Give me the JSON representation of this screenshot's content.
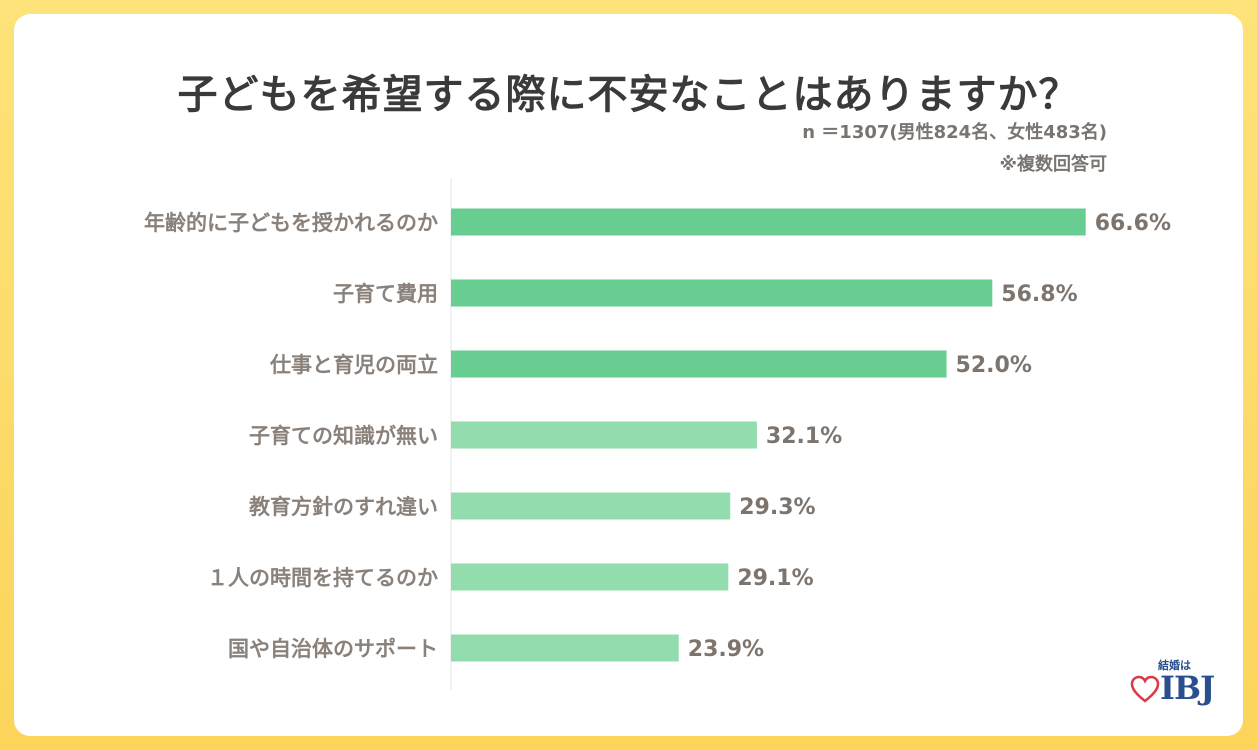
{
  "title": "子どもを希望する際に不安なことはありますか？",
  "notes": {
    "sample": "n ＝1307(男性824名、女性483名)",
    "multi": "※複数回答可"
  },
  "logo": {
    "small": "結婚は",
    "main": "IBJ",
    "icon": "heart-outline-icon"
  },
  "colors": {
    "bar_dark": "#67cd90",
    "bar_light": "#92dcae",
    "background": "#fcd45a"
  },
  "chart_data": {
    "type": "bar",
    "orientation": "horizontal",
    "categories": [
      "年齢的に子どもを授かれるのか",
      "子育て費用",
      "仕事と育児の両立",
      "子育ての知識が無い",
      "教育方針のすれ違い",
      "１人の時間を持てるのか",
      "国や自治体のサポート"
    ],
    "values": [
      66.6,
      56.8,
      52.0,
      32.1,
      29.3,
      29.1,
      23.9
    ],
    "value_labels": [
      "66.6%",
      "56.8%",
      "52.0%",
      "32.1%",
      "29.3%",
      "29.1%",
      "23.9%"
    ],
    "unit": "%",
    "xlim": [
      0,
      100
    ],
    "grid": false,
    "legend": "none"
  }
}
